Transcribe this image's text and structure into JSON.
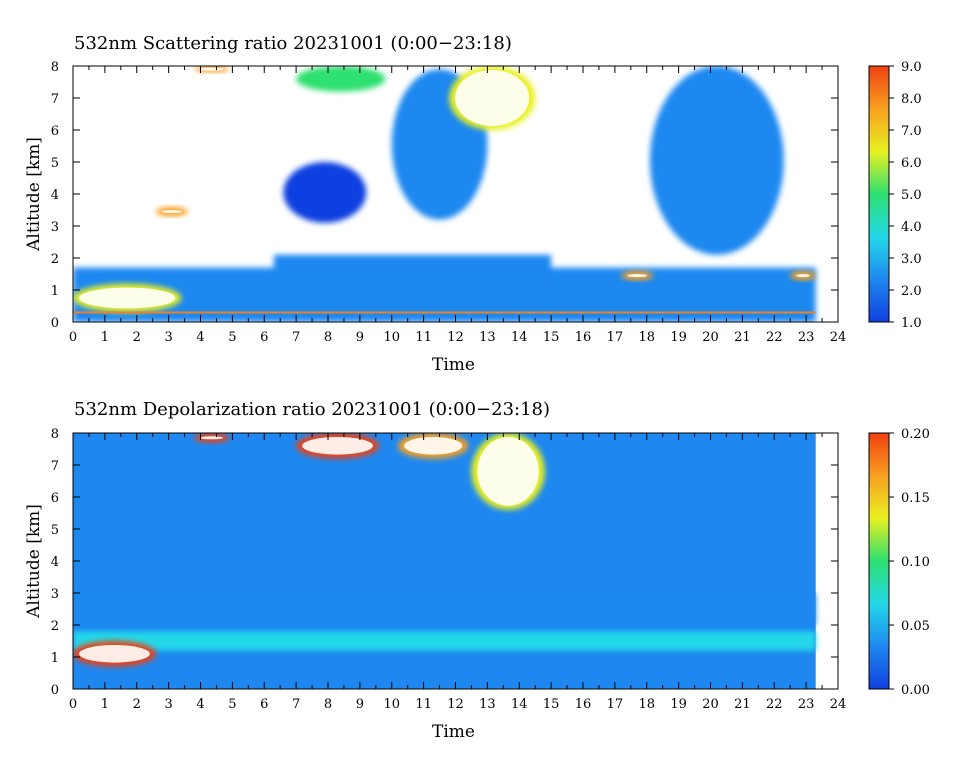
{
  "chart_data": [
    {
      "type": "heatmap",
      "title": "532nm Scattering ratio  20231001 (0:00−23:18)",
      "xlabel": "Time",
      "ylabel": "Altitude [km]",
      "xlim": [
        0,
        24
      ],
      "ylim": [
        0,
        8
      ],
      "x_ticks": [
        0,
        1,
        2,
        3,
        4,
        5,
        6,
        7,
        8,
        9,
        10,
        11,
        12,
        13,
        14,
        15,
        16,
        17,
        18,
        19,
        20,
        21,
        22,
        23,
        24
      ],
      "y_ticks": [
        0,
        1,
        2,
        3,
        4,
        5,
        6,
        7,
        8
      ],
      "data_time_range": [
        0,
        23.3
      ],
      "colorbar": {
        "range": [
          1.0,
          9.0
        ],
        "ticks": [
          "1.0",
          "2.0",
          "3.0",
          "4.0",
          "5.0",
          "6.0",
          "7.0",
          "8.0",
          "9.0"
        ],
        "colors": [
          "#1040e0",
          "#1e88f0",
          "#22d8e8",
          "#2ee070",
          "#e8f020",
          "#f8a020",
          "#f04010"
        ]
      },
      "grid": false,
      "legend": "colorbar-right",
      "features": [
        {
          "kind": "layer",
          "t0": 0,
          "t1": 23.3,
          "z0": 0.0,
          "z1": 1.7,
          "value": 2.0
        },
        {
          "kind": "layer",
          "t0": 6.3,
          "t1": 15.0,
          "z0": 1.0,
          "z1": 2.1,
          "value": 1.8
        },
        {
          "kind": "cloud",
          "t0": 6.6,
          "t1": 9.2,
          "z0": 3.1,
          "z1": 5.0,
          "value": 1.6
        },
        {
          "kind": "cloud",
          "t0": 10.0,
          "t1": 13.0,
          "z0": 3.2,
          "z1": 7.9,
          "value": 1.8
        },
        {
          "kind": "cloud",
          "t0": 11.8,
          "t1": 14.5,
          "z0": 6.0,
          "z1": 8.0,
          "value": 6.5
        },
        {
          "kind": "cloud",
          "t0": 7.0,
          "t1": 9.8,
          "z0": 7.2,
          "z1": 8.0,
          "value": 5.5
        },
        {
          "kind": "cloud",
          "t0": 3.8,
          "t1": 4.9,
          "z0": 7.8,
          "z1": 8.0,
          "value": 7.0
        },
        {
          "kind": "cloud",
          "t0": 18.1,
          "t1": 22.3,
          "z0": 2.1,
          "z1": 8.0,
          "value": 1.7
        },
        {
          "kind": "aerosol",
          "t0": 0,
          "t1": 3.4,
          "z0": 0.3,
          "z1": 1.2,
          "value": 6.0
        },
        {
          "kind": "aerosol",
          "t0": 17.2,
          "t1": 18.2,
          "z0": 1.3,
          "z1": 1.6,
          "value": 7.0
        },
        {
          "kind": "aerosol",
          "t0": 22.5,
          "t1": 23.3,
          "z0": 1.3,
          "z1": 1.6,
          "value": 7.0
        },
        {
          "kind": "blob",
          "t0": 2.6,
          "t1": 3.6,
          "z0": 3.3,
          "z1": 3.6,
          "value": 7.0
        }
      ]
    },
    {
      "type": "heatmap",
      "title": "532nm Depolarization ratio  20231001 (0:00−23:18)",
      "xlabel": "Time",
      "ylabel": "Altitude [km]",
      "xlim": [
        0,
        24
      ],
      "ylim": [
        0,
        8
      ],
      "x_ticks": [
        0,
        1,
        2,
        3,
        4,
        5,
        6,
        7,
        8,
        9,
        10,
        11,
        12,
        13,
        14,
        15,
        16,
        17,
        18,
        19,
        20,
        21,
        22,
        23,
        24
      ],
      "y_ticks": [
        0,
        1,
        2,
        3,
        4,
        5,
        6,
        7,
        8
      ],
      "data_time_range": [
        0,
        23.3
      ],
      "colorbar": {
        "range": [
          0.0,
          0.2
        ],
        "ticks": [
          "0.00",
          "0.05",
          "0.10",
          "0.15",
          "0.20"
        ],
        "colors": [
          "#1040e0",
          "#1e88f0",
          "#22d8e8",
          "#2ee070",
          "#e8f020",
          "#f8a020",
          "#f04010"
        ]
      },
      "grid": false,
      "legend": "colorbar-right",
      "features": [
        {
          "kind": "background",
          "t0": 0,
          "t1": 23.3,
          "z0": 0,
          "z1": 8,
          "value": 0.035
        },
        {
          "kind": "band",
          "t0": 0,
          "t1": 23.3,
          "z0": 1.2,
          "z1": 1.8,
          "value": 0.05
        },
        {
          "kind": "band",
          "t0": 0,
          "t1": 23.3,
          "z0": 2.0,
          "z1": 3.0,
          "value": 0.025
        },
        {
          "kind": "dust",
          "t0": 0,
          "t1": 2.6,
          "z0": 0.7,
          "z1": 1.5,
          "value": 0.2
        },
        {
          "kind": "ice",
          "t0": 3.8,
          "t1": 4.9,
          "z0": 7.7,
          "z1": 8.0,
          "value": 0.2
        },
        {
          "kind": "ice",
          "t0": 7.0,
          "t1": 9.6,
          "z0": 7.2,
          "z1": 8.0,
          "value": 0.2
        },
        {
          "kind": "ice",
          "t0": 10.2,
          "t1": 12.4,
          "z0": 7.2,
          "z1": 8.0,
          "value": 0.18
        },
        {
          "kind": "ice",
          "t0": 12.5,
          "t1": 14.8,
          "z0": 5.6,
          "z1": 8.0,
          "value": 0.15
        }
      ]
    }
  ]
}
